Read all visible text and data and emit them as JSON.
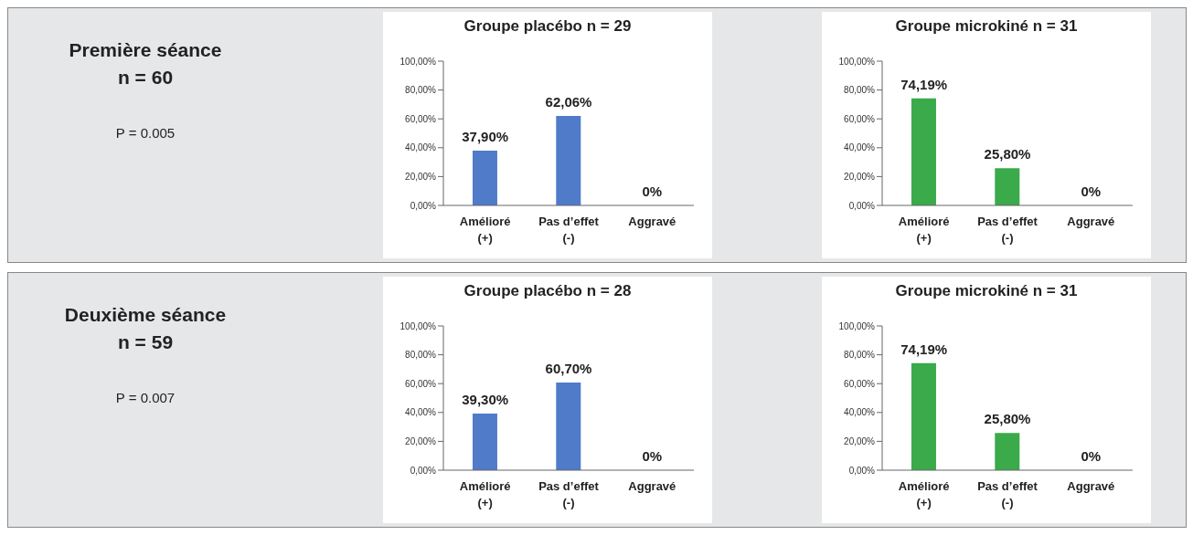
{
  "chart_data": [
    {
      "type": "other",
      "title": "Première séance",
      "subtitle": "n = 60",
      "annotations": [
        "P = 0.005"
      ]
    },
    {
      "type": "bar",
      "title": "Groupe placébo n = 29",
      "categories": [
        "Amélioré (+)",
        "Pas d’effet (-)",
        "Aggravé"
      ],
      "values": [
        37.9,
        62.06,
        0
      ],
      "value_labels": [
        "37,90%",
        "62,06%",
        "0%"
      ],
      "color": "#4f7bc9",
      "ylim": [
        0,
        100
      ],
      "yticks": [
        {
          "value": 0,
          "label": "0,00%"
        },
        {
          "value": 20,
          "label": "20,00%"
        },
        {
          "value": 40,
          "label": "40,00%"
        },
        {
          "value": 60,
          "label": "60,00%"
        },
        {
          "value": 80,
          "label": "80,00%"
        },
        {
          "value": 100,
          "label": "100,00%"
        }
      ],
      "grid": false
    },
    {
      "type": "bar",
      "title": "Groupe microkiné n = 31",
      "categories": [
        "Amélioré (+)",
        "Pas d’effet (-)",
        "Aggravé"
      ],
      "values": [
        74.19,
        25.8,
        0
      ],
      "value_labels": [
        "74,19%",
        "25,80%",
        "0%"
      ],
      "color": "#3aaa4a",
      "ylim": [
        0,
        100
      ],
      "yticks": [
        {
          "value": 0,
          "label": "0,00%"
        },
        {
          "value": 20,
          "label": "20,00%"
        },
        {
          "value": 40,
          "label": "40,00%"
        },
        {
          "value": 60,
          "label": "60,00%"
        },
        {
          "value": 80,
          "label": "80,00%"
        },
        {
          "value": 100,
          "label": "100,00%"
        }
      ],
      "grid": false
    },
    {
      "type": "other",
      "title": "Deuxième séance",
      "subtitle": "n = 59",
      "annotations": [
        "P = 0.007"
      ]
    },
    {
      "type": "bar",
      "title": "Groupe placébo n = 28",
      "categories": [
        "Amélioré (+)",
        "Pas d’effet (-)",
        "Aggravé"
      ],
      "values": [
        39.3,
        60.7,
        0
      ],
      "value_labels": [
        "39,30%",
        "60,70%",
        "0%"
      ],
      "color": "#4f7bc9",
      "ylim": [
        0,
        100
      ],
      "yticks": [
        {
          "value": 0,
          "label": "0,00%"
        },
        {
          "value": 20,
          "label": "20,00%"
        },
        {
          "value": 40,
          "label": "40,00%"
        },
        {
          "value": 60,
          "label": "60,00%"
        },
        {
          "value": 80,
          "label": "80,00%"
        },
        {
          "value": 100,
          "label": "100,00%"
        }
      ],
      "grid": false
    },
    {
      "type": "bar",
      "title": "Groupe microkiné n = 31",
      "categories": [
        "Amélioré (+)",
        "Pas d’effet (-)",
        "Aggravé"
      ],
      "values": [
        74.19,
        25.8,
        0
      ],
      "value_labels": [
        "74,19%",
        "25,80%",
        "0%"
      ],
      "color": "#3aaa4a",
      "ylim": [
        0,
        100
      ],
      "yticks": [
        {
          "value": 0,
          "label": "0,00%"
        },
        {
          "value": 20,
          "label": "20,00%"
        },
        {
          "value": 40,
          "label": "40,00%"
        },
        {
          "value": 60,
          "label": "60,00%"
        },
        {
          "value": 80,
          "label": "80,00%"
        },
        {
          "value": 100,
          "label": "100,00%"
        }
      ],
      "grid": false
    }
  ]
}
